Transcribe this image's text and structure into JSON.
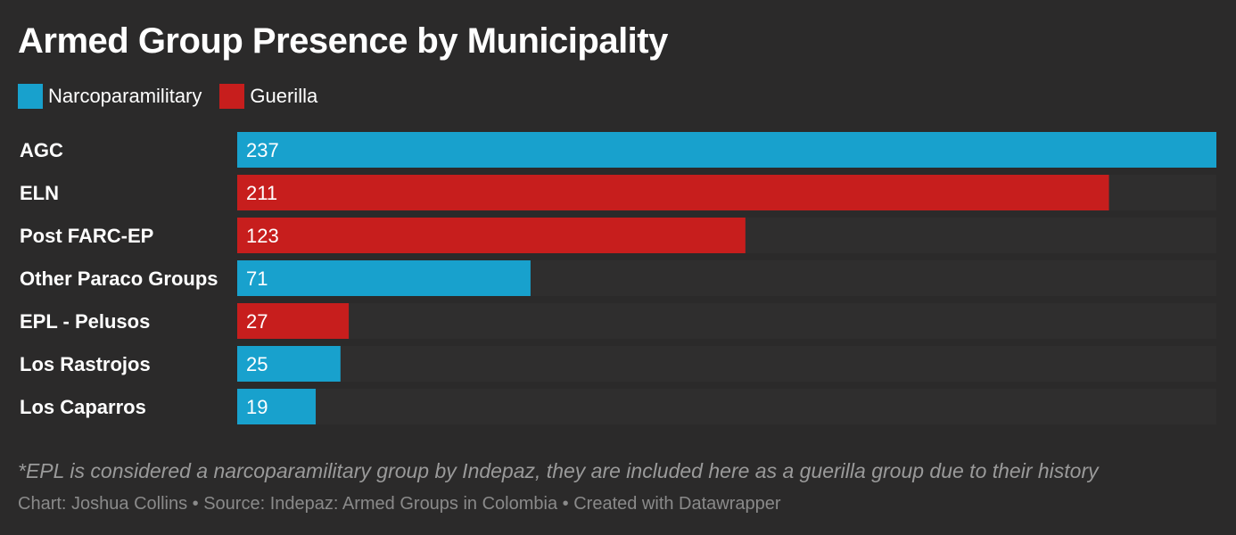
{
  "title": "Armed Group Presence by Municipality",
  "legend": [
    {
      "label": "Narcoparamilitary",
      "color": "#18a1cd"
    },
    {
      "label": "Guerilla",
      "color": "#c71e1d"
    }
  ],
  "note": "*EPL is considered a narcoparamilitary group by Indepaz, they are included here as a guerilla group due to their history",
  "credits": {
    "chart": "Chart: Joshua Collins",
    "source": "Source: Indepaz: Armed Groups in Colombia",
    "created": "Created with Datawrapper",
    "separator": " • "
  },
  "colors": {
    "Narcoparamilitary": "#18a1cd",
    "Guerilla": "#c71e1d",
    "track": "#2f2e2e",
    "background": "#2b2a2a"
  },
  "chart_data": {
    "type": "bar",
    "orientation": "horizontal",
    "title": "Armed Group Presence by Municipality",
    "xlabel": "",
    "ylabel": "",
    "xlim": [
      0,
      237
    ],
    "grid": false,
    "legend_position": "top-left",
    "categories": [
      "AGC",
      "ELN",
      "Post FARC-EP",
      "Other Paraco Groups",
      "EPL - Pelusos",
      "Los Rastrojos",
      "Los Caparros"
    ],
    "values": [
      237,
      211,
      123,
      71,
      27,
      25,
      19
    ],
    "groups": [
      "Narcoparamilitary",
      "Guerilla",
      "Guerilla",
      "Narcoparamilitary",
      "Guerilla",
      "Narcoparamilitary",
      "Narcoparamilitary"
    ]
  }
}
